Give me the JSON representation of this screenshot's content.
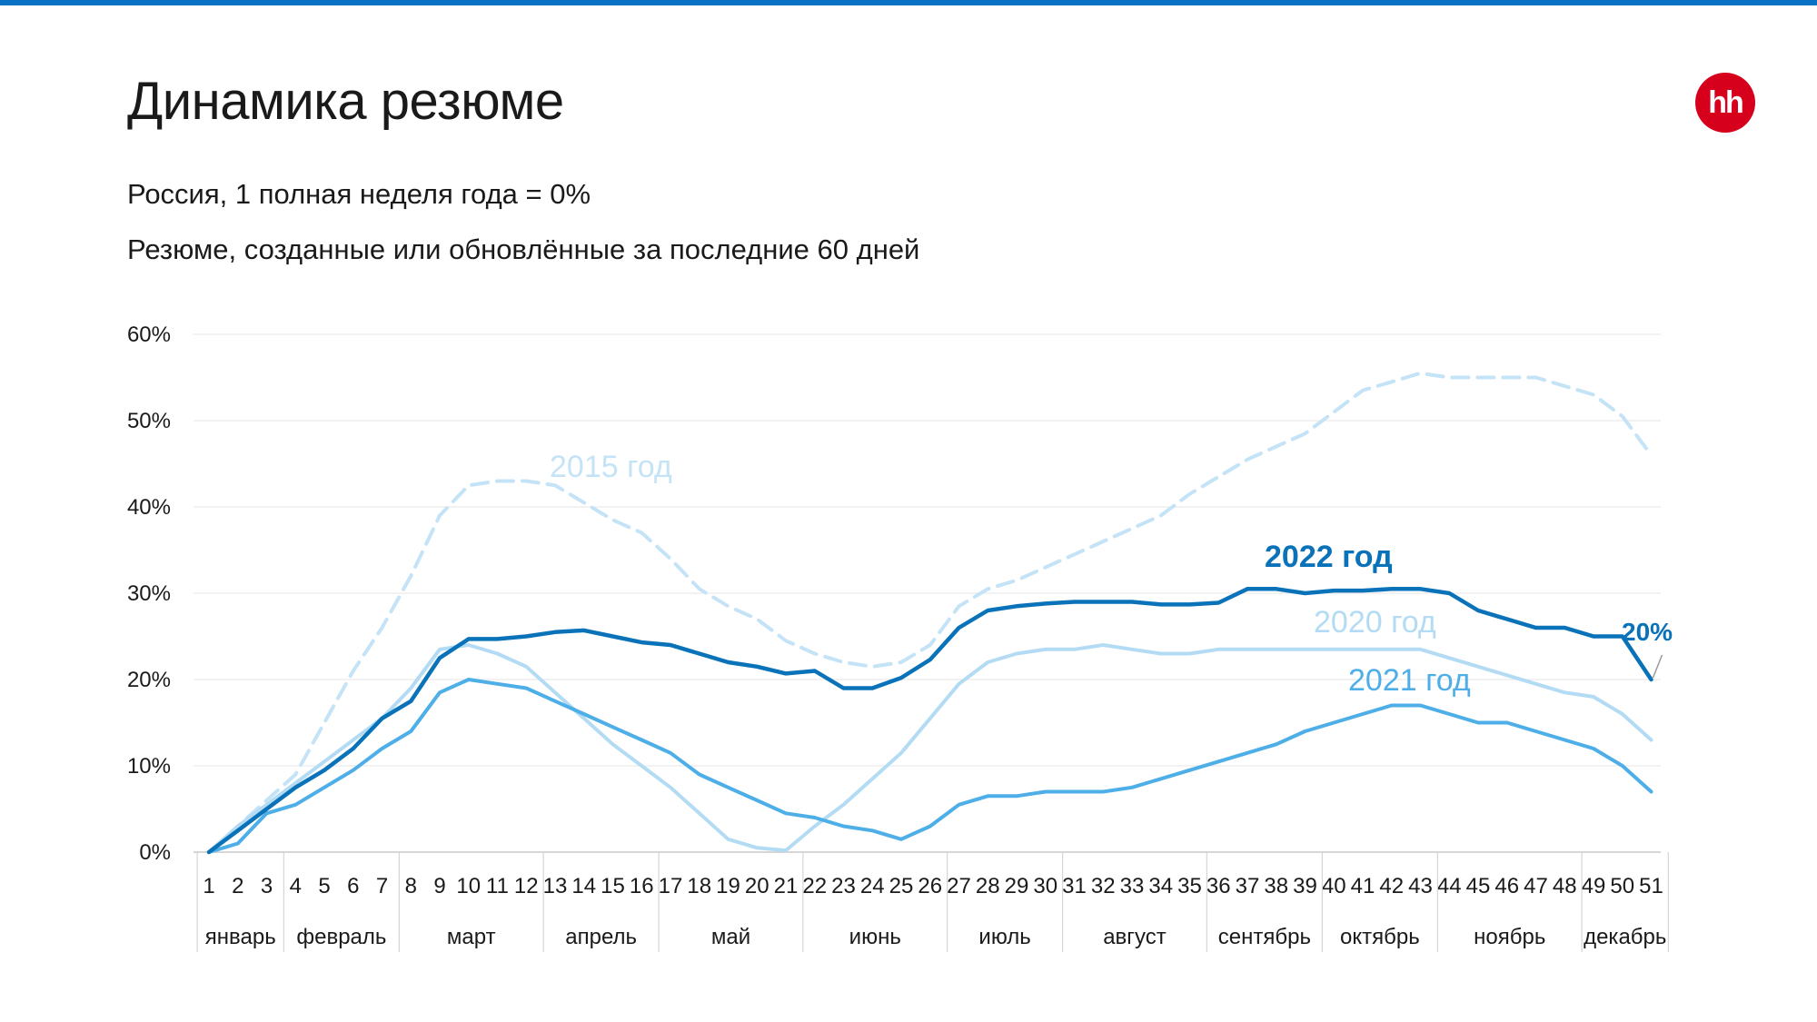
{
  "slide": {
    "title": "Динамика резюме",
    "subtitle_1": "Россия, 1 полная неделя года = 0%",
    "subtitle_2": "Резюме, созданные или обновлённые за последние 60 дней",
    "logo_text": "hh",
    "colors": {
      "accent_bar": "#0a72c2",
      "logo": "#d6001c"
    }
  },
  "chart_data": {
    "type": "line",
    "title": "Динамика резюме",
    "ylabel": "",
    "xlabel": "",
    "ylim": [
      0,
      60
    ],
    "y_ticks": [
      "0%",
      "10%",
      "20%",
      "30%",
      "40%",
      "50%",
      "60%"
    ],
    "x": [
      1,
      2,
      3,
      4,
      5,
      6,
      7,
      8,
      9,
      10,
      11,
      12,
      13,
      14,
      15,
      16,
      17,
      18,
      19,
      20,
      21,
      22,
      23,
      24,
      25,
      26,
      27,
      28,
      29,
      30,
      31,
      32,
      33,
      34,
      35,
      36,
      37,
      38,
      39,
      40,
      41,
      42,
      43,
      44,
      45,
      46,
      47,
      48,
      49,
      50,
      51
    ],
    "months": [
      {
        "label": "январь",
        "from": 1,
        "to": 3
      },
      {
        "label": "февраль",
        "from": 4,
        "to": 7
      },
      {
        "label": "март",
        "from": 8,
        "to": 12
      },
      {
        "label": "апрель",
        "from": 13,
        "to": 16
      },
      {
        "label": "май",
        "from": 17,
        "to": 21
      },
      {
        "label": "июнь",
        "from": 22,
        "to": 26
      },
      {
        "label": "июль",
        "from": 27,
        "to": 30
      },
      {
        "label": "август",
        "from": 31,
        "to": 35
      },
      {
        "label": "сентябрь",
        "from": 36,
        "to": 39
      },
      {
        "label": "октябрь",
        "from": 40,
        "to": 43
      },
      {
        "label": "ноябрь",
        "from": 44,
        "to": 48
      },
      {
        "label": "декабрь",
        "from": 49,
        "to": 51
      }
    ],
    "grid": true,
    "series": [
      {
        "name": "2015 год",
        "color": "#c5e3f7",
        "dash": true,
        "values": [
          0,
          3,
          6,
          9,
          15,
          21,
          26,
          32,
          39,
          42.5,
          43,
          43,
          42.5,
          40.5,
          38.5,
          37,
          34,
          30.5,
          28.5,
          27,
          24.5,
          23,
          22,
          21.5,
          22,
          24,
          28.5,
          30.5,
          31.5,
          33,
          34.5,
          36,
          37.5,
          39,
          41.5,
          43.5,
          45.5,
          47,
          48.5,
          51,
          53.5,
          54.5,
          55.5,
          55,
          55,
          55,
          55,
          54,
          53,
          50.5,
          46
        ]
      },
      {
        "name": "2020 год",
        "color": "#b3dcf4",
        "dash": false,
        "values": [
          0,
          3,
          5.5,
          8,
          10.5,
          13,
          15.5,
          19,
          23.5,
          24,
          23,
          21.5,
          18.5,
          15.5,
          12.5,
          10,
          7.5,
          4.5,
          1.5,
          0.5,
          0.2,
          3,
          5.5,
          8.5,
          11.5,
          15.5,
          19.5,
          22,
          23,
          23.5,
          23.5,
          24,
          23.5,
          23,
          23,
          23.5,
          23.5,
          23.5,
          23.5,
          23.5,
          23.5,
          23.5,
          23.5,
          22.5,
          21.5,
          20.5,
          19.5,
          18.5,
          18,
          16,
          13
        ]
      },
      {
        "name": "2021 год",
        "color": "#4daee8",
        "dash": false,
        "values": [
          0,
          1,
          4.5,
          5.5,
          7.5,
          9.5,
          12,
          14,
          18.5,
          20,
          19.5,
          19,
          17.5,
          16,
          14.5,
          13,
          11.5,
          9,
          7.5,
          6,
          4.5,
          4,
          3,
          2.5,
          1.5,
          3,
          5.5,
          6.5,
          6.5,
          7,
          7,
          7,
          7.5,
          8.5,
          9.5,
          10.5,
          11.5,
          12.5,
          14,
          15,
          16,
          17,
          17,
          16,
          15,
          15,
          14,
          13,
          12,
          10,
          7
        ]
      },
      {
        "name": "2022 год",
        "color": "#0a72b9",
        "dash": false,
        "values": [
          0,
          2.5,
          5,
          7.5,
          9.5,
          12,
          15.5,
          17.5,
          22.5,
          24.7,
          24.7,
          25,
          25.5,
          25.7,
          25,
          24.3,
          24,
          23,
          22,
          21.5,
          20.7,
          21,
          19,
          19,
          20.2,
          22.3,
          26,
          28,
          28.5,
          28.8,
          29,
          29,
          29,
          28.7,
          28.7,
          28.9,
          30.5,
          30.5,
          30,
          30.3,
          30.3,
          30.5,
          30.5,
          30,
          28,
          27,
          26,
          26,
          25,
          25,
          20
        ]
      }
    ],
    "end_label": "20%"
  }
}
